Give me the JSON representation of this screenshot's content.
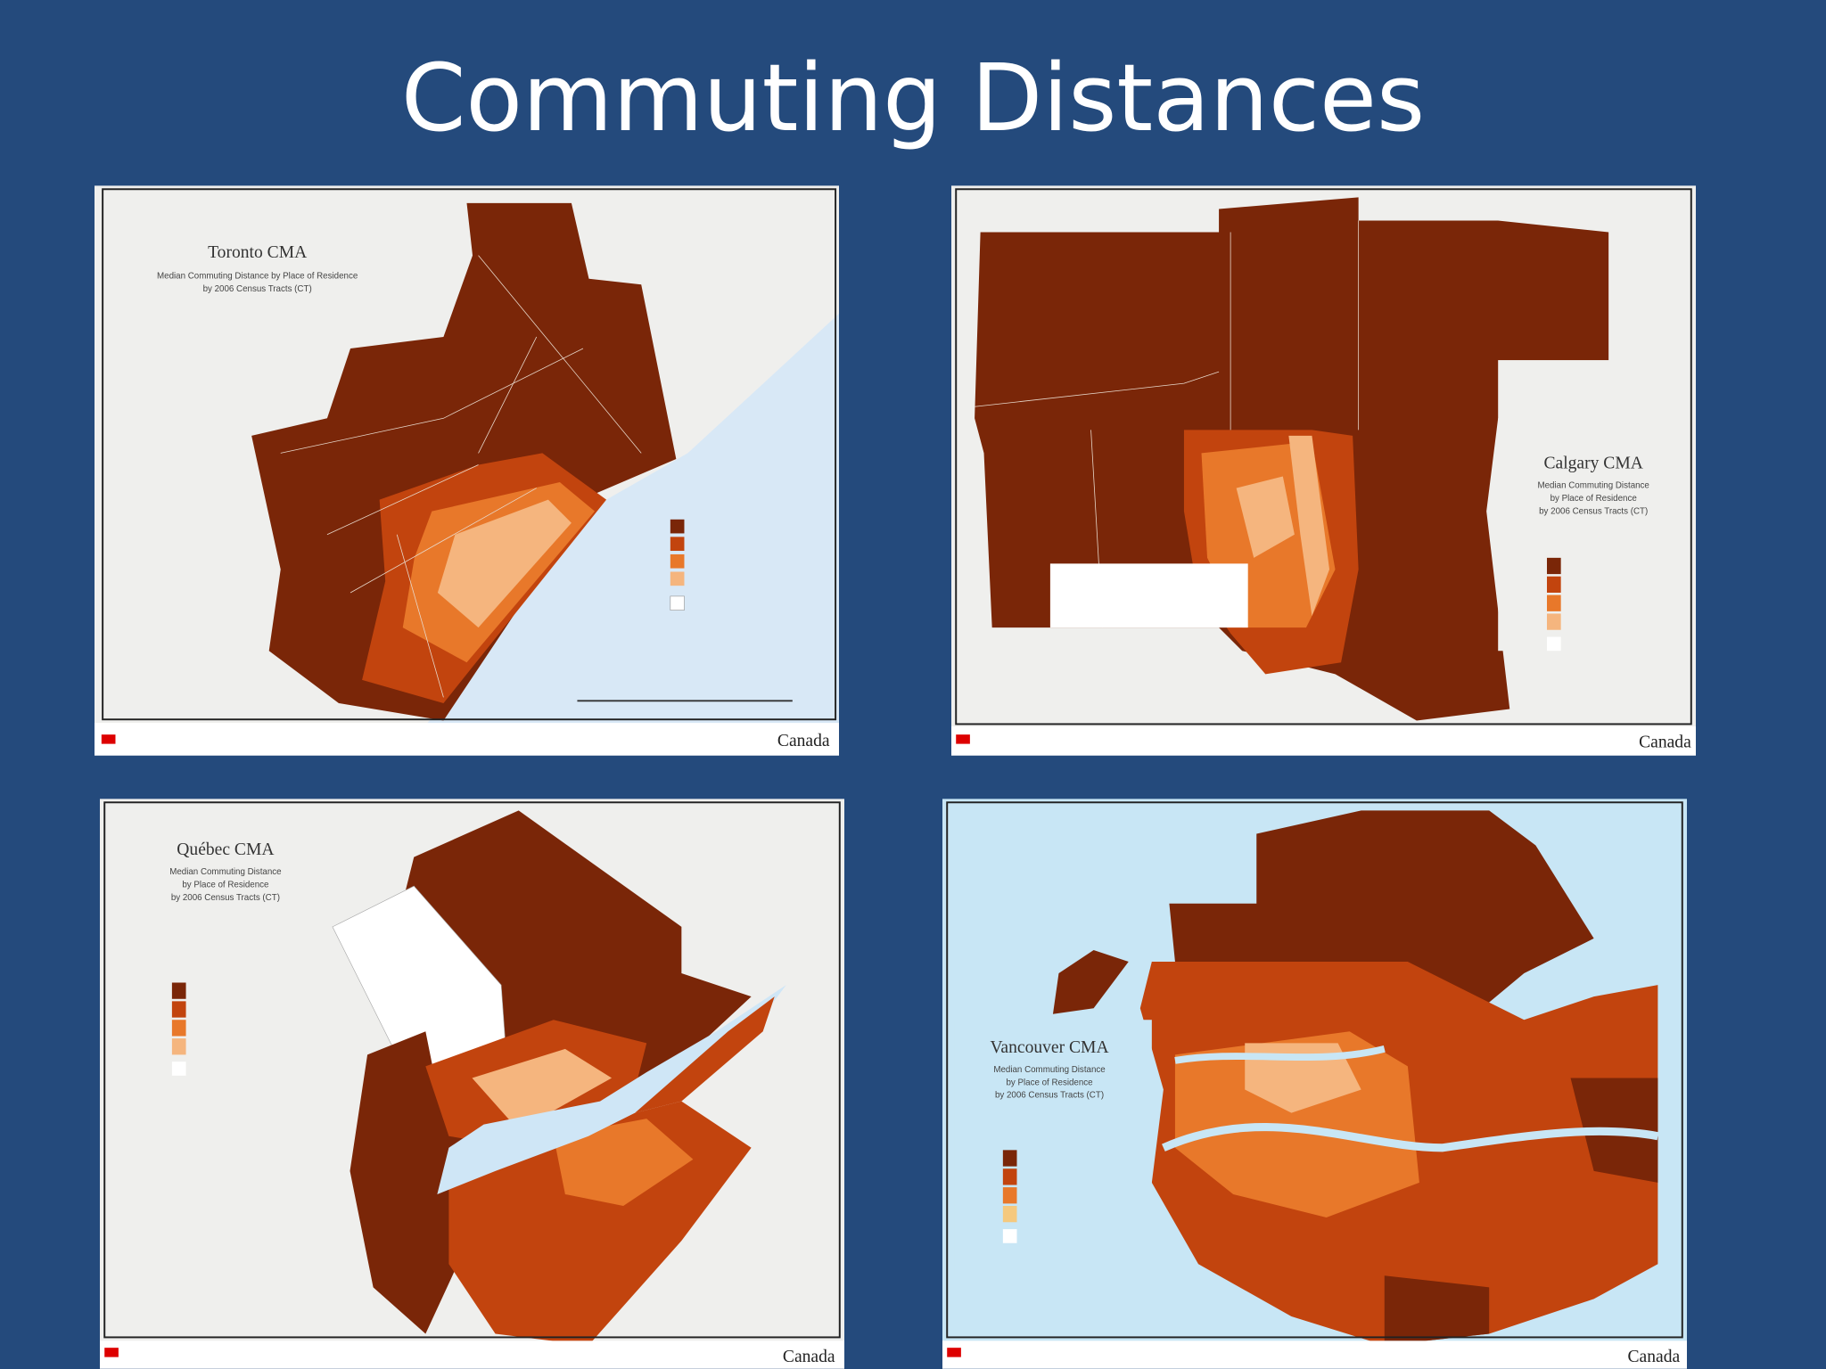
{
  "title": "Commuting Distances",
  "maps": [
    {
      "title": "Toronto CMA",
      "subtitle": [
        "Median Commuting Distance by Place of Residence",
        "by 2006 Census Tracts (CT)"
      ],
      "footer": "Canada"
    },
    {
      "title": "Calgary CMA",
      "subtitle": [
        "Median Commuting Distance",
        "by Place of Residence",
        "by 2006 Census Tracts (CT)"
      ],
      "footer": "Canada"
    },
    {
      "title": "Québec CMA",
      "subtitle": [
        "Median Commuting Distance",
        "by Place of Residence",
        "by 2006 Census Tracts (CT)"
      ],
      "footer": "Canada"
    },
    {
      "title": "Vancouver CMA",
      "subtitle": [
        "Median Commuting Distance",
        "by Place of Residence",
        "by 2006 Census Tracts (CT)"
      ],
      "footer": "Canada"
    }
  ]
}
